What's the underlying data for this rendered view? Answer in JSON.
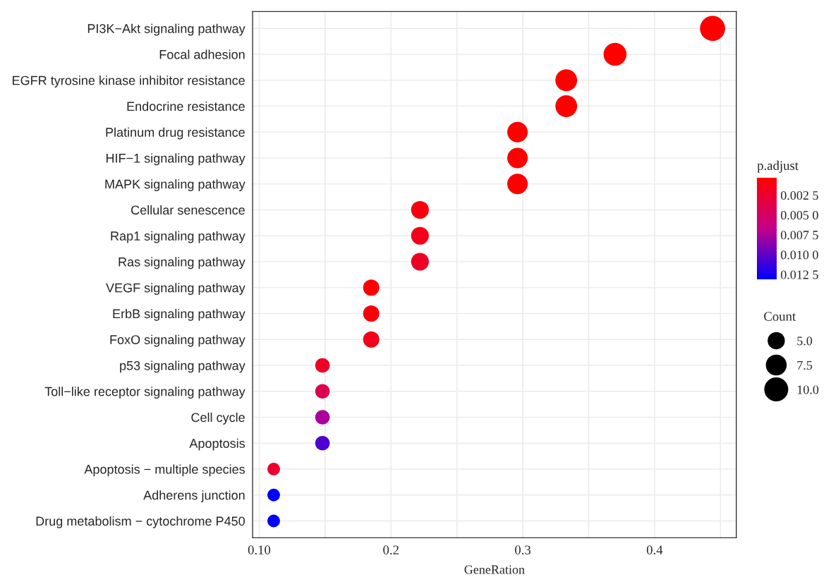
{
  "chart_data": {
    "type": "bubble",
    "orientation": "horizontal",
    "xlabel": "GeneRation",
    "legend_title": "Count",
    "clabel": "p.adjust",
    "categories": [
      "PI3K−Akt signaling pathway",
      "Focal adhesion",
      "EGFR tyrosine kinase inhibitor resistance",
      "Endocrine resistance",
      "Platinum drug resistance",
      "HIF−1 signaling pathway",
      "MAPK signaling pathway",
      "Cellular senescence",
      "Rap1 signaling pathway",
      "Ras signaling pathway",
      "VEGF signaling pathway",
      "ErbB signaling pathway",
      "FoxO signaling pathway",
      "p53 signaling pathway",
      "Toll−like receptor signaling pathway",
      "Cell cycle",
      "Apoptosis",
      "Apoptosis − multiple species",
      "Adherens junction",
      "Drug metabolism − cytochrome P450"
    ],
    "values": [
      0.444,
      0.37,
      0.333,
      0.333,
      0.296,
      0.296,
      0.296,
      0.222,
      0.222,
      0.222,
      0.185,
      0.185,
      0.185,
      0.148,
      0.148,
      0.148,
      0.148,
      0.111,
      0.111,
      0.111
    ],
    "sizes": [
      12,
      10,
      9,
      9,
      8,
      8,
      8,
      6,
      6,
      6,
      5,
      5,
      5,
      4,
      4,
      4,
      4,
      3,
      3,
      3
    ],
    "size_legend": [
      {
        "value": 5,
        "label": "5.0"
      },
      {
        "value": 7.5,
        "label": "7.5"
      },
      {
        "value": 10,
        "label": "10.0"
      }
    ],
    "cvalues": [
      0.0003,
      0.0003,
      0.0003,
      0.0003,
      0.0003,
      0.0003,
      0.0003,
      0.001,
      0.0015,
      0.002,
      0.0004,
      0.0008,
      0.0015,
      0.002,
      0.004,
      0.0075,
      0.0105,
      0.0025,
      0.0131,
      0.0131
    ],
    "clim": [
      0.0003,
      0.0131
    ],
    "cticks": [
      {
        "value": 0.0025,
        "label": "0.002 5"
      },
      {
        "value": 0.005,
        "label": "0.005 0"
      },
      {
        "value": 0.0075,
        "label": "0.007 5"
      },
      {
        "value": 0.01,
        "label": "0.010 0"
      },
      {
        "value": 0.0125,
        "label": "0.012 5"
      }
    ],
    "xlim": [
      0.095,
      0.462
    ],
    "xticks": [
      {
        "value": 0.1,
        "label": "0.10"
      },
      0.2,
      0.3,
      0.4
    ],
    "grid": true
  }
}
